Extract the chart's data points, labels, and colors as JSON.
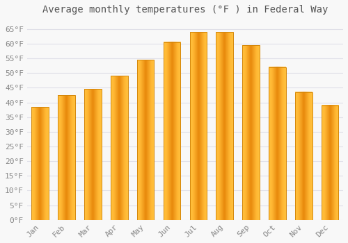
{
  "title": "Average monthly temperatures (°F ) in Federal Way",
  "months": [
    "Jan",
    "Feb",
    "Mar",
    "Apr",
    "May",
    "Jun",
    "Jul",
    "Aug",
    "Sep",
    "Oct",
    "Nov",
    "Dec"
  ],
  "values": [
    38.5,
    42.5,
    44.5,
    49,
    54.5,
    60.5,
    64,
    64,
    59.5,
    52,
    43.5,
    39
  ],
  "bar_color_center": "#FFA500",
  "bar_color_edge": "#E8890C",
  "background_color": "#f8f8f8",
  "grid_color": "#e0e0e8",
  "ylim": [
    0,
    68
  ],
  "yticks": [
    0,
    5,
    10,
    15,
    20,
    25,
    30,
    35,
    40,
    45,
    50,
    55,
    60,
    65
  ],
  "title_fontsize": 10,
  "tick_fontsize": 8
}
